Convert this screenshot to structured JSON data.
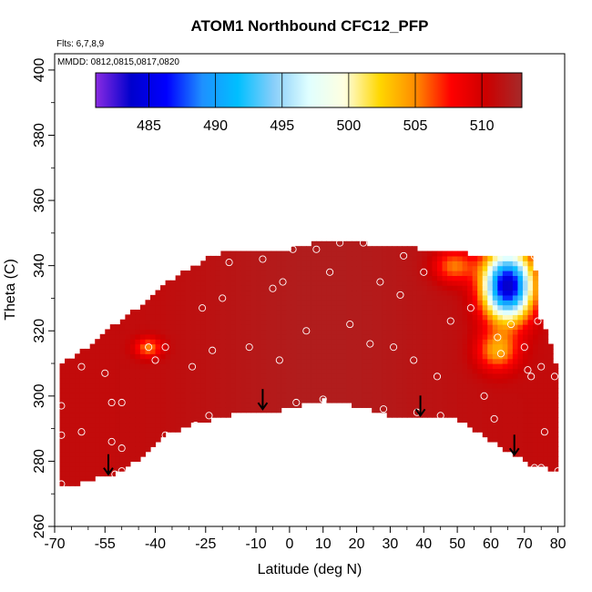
{
  "chart_data": {
    "type": "heatmap",
    "title": "ATOM1 Northbound CFC12_PFP",
    "flights_note": "Flts: 6,7,8,9",
    "dates_note": "MMDD: 0812,0815,0817,0820",
    "xlabel": "Latitude (deg N)",
    "ylabel": "Theta (C)",
    "xlim": [
      -70,
      82
    ],
    "ylim": [
      260,
      405
    ],
    "xticks": [
      -70,
      -55,
      -40,
      -25,
      -10,
      0,
      10,
      20,
      30,
      40,
      50,
      60,
      70,
      80
    ],
    "xtick_labels": [
      "-70",
      "-55",
      "-40",
      "-25",
      "-10",
      "0",
      "10",
      "20",
      "30",
      "40",
      "50",
      "60",
      "70",
      "80"
    ],
    "yticks": [
      260,
      280,
      300,
      320,
      340,
      360,
      380,
      400
    ],
    "ytick_labels": [
      "260",
      "280",
      "300",
      "320",
      "340",
      "360",
      "380",
      "400"
    ],
    "colorbar": {
      "range": [
        481,
        513
      ],
      "ticks": [
        485,
        490,
        495,
        500,
        505,
        510
      ],
      "tick_labels": [
        "485",
        "490",
        "495",
        "500",
        "505",
        "510"
      ],
      "colors": [
        "#8a2be2",
        "#0000cd",
        "#0000ff",
        "#1e90ff",
        "#00bfff",
        "#87cefa",
        "#e0ffff",
        "#ffffe0",
        "#ffd700",
        "#ff8c00",
        "#ff0000",
        "#cc0000",
        "#a52a2a"
      ]
    },
    "field_boundary": [
      [
        -68,
        273
      ],
      [
        -63,
        273
      ],
      [
        -57,
        275
      ],
      [
        -50,
        277
      ],
      [
        -43,
        282
      ],
      [
        -37,
        288
      ],
      [
        -30,
        291
      ],
      [
        -20,
        294
      ],
      [
        -10,
        295
      ],
      [
        0,
        296
      ],
      [
        10,
        299
      ],
      [
        20,
        297
      ],
      [
        30,
        294
      ],
      [
        40,
        293
      ],
      [
        50,
        293
      ],
      [
        58,
        288
      ],
      [
        65,
        283
      ],
      [
        72,
        279
      ],
      [
        80,
        277
      ],
      [
        80,
        306
      ],
      [
        78,
        315
      ],
      [
        76,
        322
      ],
      [
        74,
        325
      ],
      [
        73,
        343
      ],
      [
        60,
        343
      ],
      [
        50,
        344
      ],
      [
        40,
        345
      ],
      [
        30,
        346
      ],
      [
        20,
        347
      ],
      [
        10,
        348
      ],
      [
        0,
        345
      ],
      [
        -10,
        345
      ],
      [
        -20,
        344
      ],
      [
        -25,
        342
      ],
      [
        -30,
        339
      ],
      [
        -38,
        334
      ],
      [
        -45,
        327
      ],
      [
        -52,
        322
      ],
      [
        -58,
        317
      ],
      [
        -63,
        313
      ],
      [
        -68,
        310
      ]
    ],
    "base_value": 511,
    "anomalies": [
      {
        "lat": 65,
        "theta": 334,
        "value": 483,
        "spread_lat": 7,
        "spread_theta": 10
      },
      {
        "lat": 62,
        "theta": 314,
        "value": 504,
        "spread_lat": 6,
        "spread_theta": 6
      },
      {
        "lat": -42,
        "theta": 315,
        "value": 505,
        "spread_lat": 4,
        "spread_theta": 3
      },
      {
        "lat": 49,
        "theta": 340,
        "value": 505,
        "spread_lat": 6,
        "spread_theta": 5
      }
    ],
    "samples": [
      [
        -68,
        297
      ],
      [
        -68,
        288
      ],
      [
        -68,
        273
      ],
      [
        -62,
        289
      ],
      [
        -62,
        309
      ],
      [
        -55,
        307
      ],
      [
        -53,
        298
      ],
      [
        -50,
        298
      ],
      [
        -53,
        286
      ],
      [
        -50,
        284
      ],
      [
        -52,
        276
      ],
      [
        -50,
        277
      ],
      [
        -42,
        315
      ],
      [
        -40,
        311
      ],
      [
        -37,
        315
      ],
      [
        -37,
        288
      ],
      [
        -29,
        309
      ],
      [
        -28,
        291
      ],
      [
        -26,
        327
      ],
      [
        -24,
        294
      ],
      [
        -23,
        314
      ],
      [
        -20,
        330
      ],
      [
        -18,
        341
      ],
      [
        -12,
        315
      ],
      [
        -8,
        342
      ],
      [
        -5,
        333
      ],
      [
        -3,
        311
      ],
      [
        -2,
        335
      ],
      [
        1,
        345
      ],
      [
        2,
        298
      ],
      [
        5,
        320
      ],
      [
        8,
        345
      ],
      [
        10,
        299
      ],
      [
        12,
        338
      ],
      [
        15,
        347
      ],
      [
        18,
        322
      ],
      [
        22,
        347
      ],
      [
        24,
        316
      ],
      [
        27,
        335
      ],
      [
        28,
        296
      ],
      [
        31,
        315
      ],
      [
        33,
        331
      ],
      [
        34,
        343
      ],
      [
        37,
        311
      ],
      [
        38,
        295
      ],
      [
        40,
        338
      ],
      [
        44,
        306
      ],
      [
        45,
        294
      ],
      [
        48,
        323
      ],
      [
        54,
        327
      ],
      [
        58,
        300
      ],
      [
        61,
        293
      ],
      [
        62,
        318
      ],
      [
        63,
        313
      ],
      [
        66,
        322
      ],
      [
        70,
        315
      ],
      [
        71,
        308
      ],
      [
        72,
        306
      ],
      [
        73,
        343
      ],
      [
        74,
        323
      ],
      [
        75,
        309
      ],
      [
        76,
        289
      ],
      [
        73,
        278
      ],
      [
        75,
        278
      ],
      [
        79,
        306
      ],
      [
        80,
        277
      ]
    ],
    "arrows": [
      {
        "lat": -54,
        "theta": 276
      },
      {
        "lat": -8,
        "theta": 296
      },
      {
        "lat": 39,
        "theta": 294
      },
      {
        "lat": 67,
        "theta": 282
      }
    ]
  }
}
